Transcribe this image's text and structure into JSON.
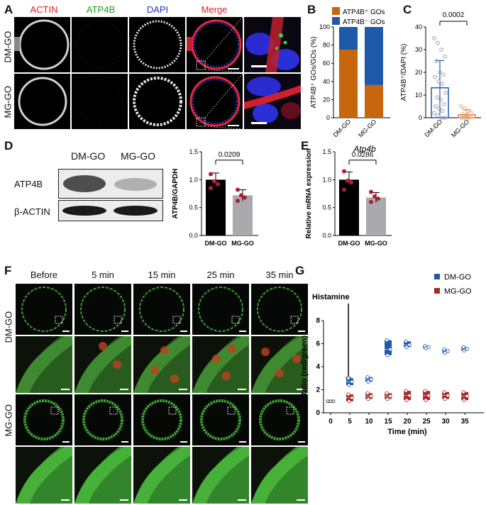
{
  "panelA": {
    "label": "A",
    "headers": [
      {
        "text": "ACTIN",
        "color": "#e02020"
      },
      {
        "text": "ATP4B",
        "color": "#18a018"
      },
      {
        "text": "DAPI",
        "color": "#2030d0"
      },
      {
        "text": "Merge",
        "color": "#e02020"
      }
    ],
    "rows": [
      "DM-GO",
      "MG-GO"
    ]
  },
  "panelB": {
    "label": "B",
    "legend": [
      "ATP4B⁺ GOs",
      "ATP4B⁻ GOs"
    ],
    "colors": {
      "positive": "#c8650f",
      "negative": "#1f5aa8"
    },
    "ylabel": "ATP4B⁺ GOs/GOs (%)",
    "chart_data": {
      "type": "bar",
      "categories": [
        "DM-GO",
        "MG-GO"
      ],
      "series": [
        {
          "name": "ATP4B⁺ GOs",
          "values": [
            75,
            36
          ]
        },
        {
          "name": "ATP4B⁻ GOs",
          "values": [
            25,
            64
          ]
        }
      ],
      "ylim": [
        0,
        100
      ],
      "yticks": [
        0,
        20,
        40,
        60,
        80,
        100
      ]
    }
  },
  "panelC": {
    "label": "C",
    "ylabel": "ATP4B⁺/DAPI (%)",
    "pvalue": "0.0002",
    "chart_data": {
      "type": "bar",
      "categories": [
        "DM-GO",
        "MG-GO"
      ],
      "values": [
        13.2,
        1.3
      ],
      "sd": [
        12,
        2.2
      ],
      "ylim": [
        0,
        40
      ],
      "yticks": [
        0,
        10,
        20,
        30,
        40
      ],
      "points": [
        [
          35,
          33,
          30,
          27,
          25,
          20,
          19,
          18,
          16,
          15,
          11,
          9,
          8,
          6,
          5,
          4,
          3,
          2,
          1,
          0,
          0
        ],
        [
          5,
          4,
          3,
          2,
          1.5,
          1,
          0.5,
          0,
          0,
          0
        ]
      ]
    }
  },
  "panelD": {
    "label": "D",
    "blot_cols": [
      "DM-GO",
      "MG-GO"
    ],
    "blot_rows": [
      "ATP4B",
      "β-ACTIN"
    ],
    "ylabel": "ATP4B/GAPDH",
    "pvalue": "0.0209",
    "chart_data": {
      "type": "bar",
      "categories": [
        "DM-GO",
        "MG-GO"
      ],
      "values": [
        1.0,
        0.72
      ],
      "sd": [
        0.12,
        0.1
      ],
      "ylim": [
        0,
        1.5
      ],
      "yticks": [
        "0.0",
        "0.5",
        "1.0",
        "1.5"
      ],
      "points": [
        [
          1.1,
          0.97,
          0.92,
          0.85
        ],
        [
          0.82,
          0.72,
          0.68,
          0.62
        ]
      ]
    }
  },
  "panelE": {
    "label": "E",
    "title": "Atp4b",
    "ylabel": "Relative mRNA expression",
    "pvalue": "0.0286",
    "chart_data": {
      "type": "bar",
      "categories": [
        "DM-GO",
        "MG-GO"
      ],
      "values": [
        1.0,
        0.68
      ],
      "sd": [
        0.14,
        0.09
      ],
      "ylim": [
        0,
        1.5
      ],
      "yticks": [
        "0.0",
        "0.5",
        "1.0",
        "1.5"
      ],
      "points": [
        [
          1.15,
          0.98,
          0.95,
          0.82
        ],
        [
          0.78,
          0.7,
          0.66,
          0.6
        ]
      ]
    }
  },
  "panelF": {
    "label": "F",
    "timepoints": [
      "Before",
      "5 min",
      "15 min",
      "25 min",
      "35 min"
    ],
    "rows": [
      "DM-GO",
      "MG-GO"
    ]
  },
  "panelG": {
    "label": "G",
    "annotation": "Histamine",
    "xlabel": "Time (min)",
    "ylabel": "Ratio (red/green)",
    "legend": [
      "DM-GO",
      "MG-GO"
    ],
    "colors": {
      "DM-GO": "#1f5aa8",
      "MG-GO": "#a52a2a"
    },
    "chart_data": {
      "type": "box",
      "x": [
        0,
        5,
        10,
        15,
        20,
        25,
        30,
        35
      ],
      "xticks": [
        "0",
        "5",
        "10",
        "15",
        "20",
        "25",
        "30",
        "35"
      ],
      "ylim": [
        0,
        8
      ],
      "yticks": [
        "0",
        "2",
        "4",
        "6",
        "8"
      ],
      "series": [
        {
          "name": "DM-GO",
          "low": [
            1.0,
            2.4,
            2.7,
            5.0,
            5.7,
            5.6,
            5.2,
            5.4
          ],
          "high": [
            1.0,
            3.0,
            3.1,
            6.3,
            6.2,
            5.8,
            5.5,
            5.7
          ],
          "median": [
            1.0,
            2.7,
            2.9,
            5.5,
            5.9,
            5.7,
            5.35,
            5.55
          ]
        },
        {
          "name": "MG-GO",
          "low": [
            1.0,
            1.0,
            1.2,
            1.2,
            1.1,
            1.1,
            1.2,
            1.1
          ],
          "high": [
            1.0,
            1.6,
            1.7,
            1.7,
            1.9,
            1.9,
            1.8,
            1.8
          ],
          "median": [
            1.0,
            1.3,
            1.45,
            1.45,
            1.5,
            1.5,
            1.5,
            1.45
          ]
        }
      ]
    }
  }
}
